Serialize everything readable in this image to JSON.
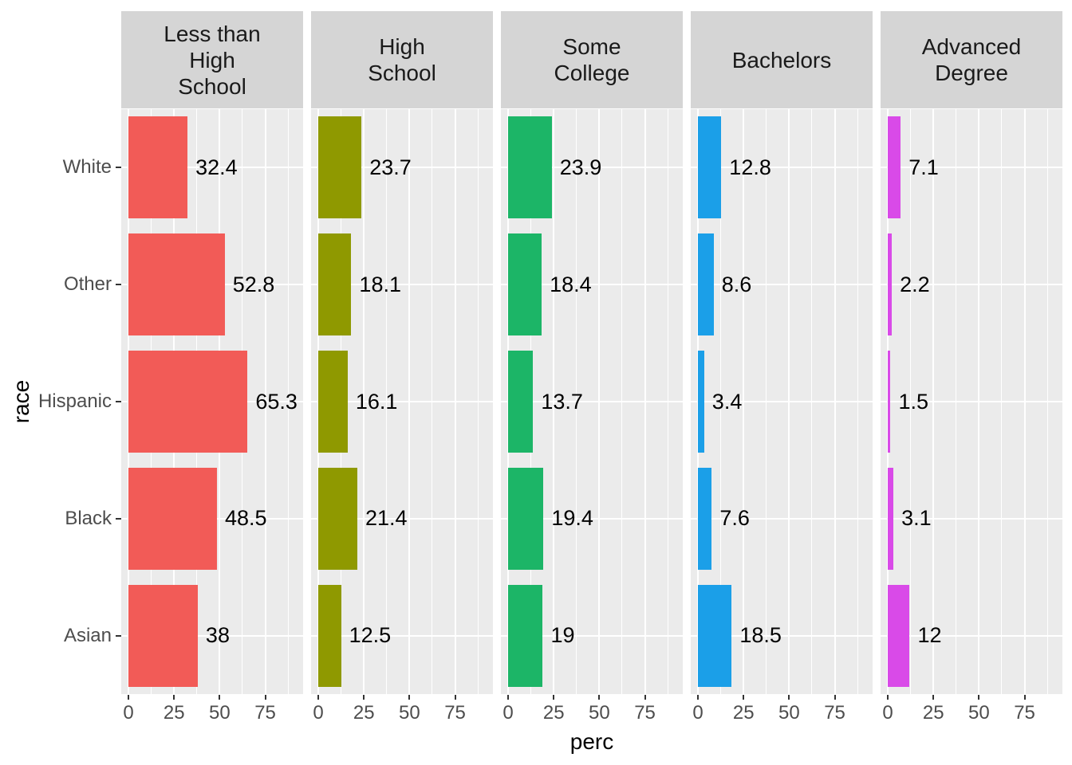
{
  "chart_data": {
    "type": "bar",
    "orientation": "horizontal",
    "title": "",
    "xlabel": "perc",
    "ylabel": "race",
    "categories": [
      "White",
      "Other",
      "Hispanic",
      "Black",
      "Asian"
    ],
    "x_ticks": [
      "0",
      "25",
      "50",
      "75"
    ],
    "x_tick_values": [
      0,
      25,
      50,
      75
    ],
    "x_minor_values": [
      12.5,
      37.5,
      62.5,
      87.5
    ],
    "x_range": [
      -3.95,
      95.75
    ],
    "legend_position": "none",
    "grid": "on",
    "facets": [
      {
        "label": "Less than High School",
        "strip_lines": [
          "Less than",
          "High",
          "School"
        ],
        "color": "#F25B57",
        "values": [
          32.4,
          52.8,
          65.3,
          48.5,
          38
        ],
        "labels": [
          "32.4",
          "52.8",
          "65.3",
          "48.5",
          "38"
        ]
      },
      {
        "label": "High School",
        "strip_lines": [
          "High",
          "School"
        ],
        "color": "#8F9900",
        "values": [
          23.7,
          18.1,
          16.1,
          21.4,
          12.5
        ],
        "labels": [
          "23.7",
          "18.1",
          "16.1",
          "21.4",
          "12.5"
        ]
      },
      {
        "label": "Some College",
        "strip_lines": [
          "Some",
          "College"
        ],
        "color": "#1CB567",
        "values": [
          23.9,
          18.4,
          13.7,
          19.4,
          19
        ],
        "labels": [
          "23.9",
          "18.4",
          "13.7",
          "19.4",
          "19"
        ]
      },
      {
        "label": "Bachelors",
        "strip_lines": [
          "Bachelors"
        ],
        "color": "#1B9FE8",
        "values": [
          12.8,
          8.6,
          3.4,
          7.6,
          18.5
        ],
        "labels": [
          "12.8",
          "8.6",
          "3.4",
          "7.6",
          "18.5"
        ]
      },
      {
        "label": "Advanced Degree",
        "strip_lines": [
          "Advanced",
          "Degree"
        ],
        "color": "#D94AE8",
        "values": [
          7.1,
          2.2,
          1.5,
          3.1,
          12
        ],
        "labels": [
          "7.1",
          "2.2",
          "1.5",
          "3.1",
          "12"
        ]
      }
    ],
    "colors": {
      "panel_bg": "#EBEBEB",
      "strip_bg": "#D5D5D5",
      "grid": "#FFFFFF",
      "tick_mark": "#333333",
      "tick_label": "#4D4D4D",
      "value_label": "#000000",
      "strip_text": "#1A1A1A",
      "axis_title": "#000000"
    }
  }
}
